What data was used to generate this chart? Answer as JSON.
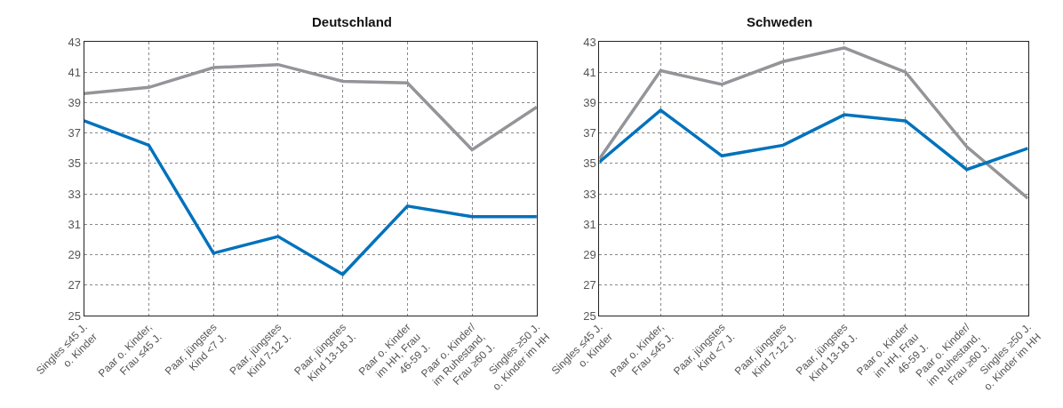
{
  "chart_data": [
    {
      "type": "line",
      "title": "Deutschland",
      "categories": [
        "Singles ≤45 J.\no. Kinder",
        "Paar o. Kinder,\nFrau ≤45 J.",
        "Paar, jüngstes\nKind <7 J.",
        "Paar, jüngstes\nKind 7-12 J.",
        "Paar, jüngstes\nKind 13-18 J.",
        "Paar o. Kinder\nim HH, Frau\n46-59 J.",
        "Paar o. Kinder/\nim Ruhestand,\nFrau ≥60 J.",
        "Singles ≥50 J.\no. Kinder im HH"
      ],
      "series": [
        {
          "color": "#939598",
          "values": [
            39.6,
            40.0,
            41.3,
            41.5,
            40.4,
            40.3,
            35.9,
            38.7
          ]
        },
        {
          "color": "#0072bc",
          "values": [
            37.8,
            36.2,
            29.1,
            30.2,
            27.7,
            32.2,
            31.5,
            31.5
          ]
        }
      ],
      "ylim": [
        25,
        43
      ],
      "yticks": [
        25,
        27,
        29,
        31,
        33,
        35,
        37,
        39,
        41,
        43
      ],
      "grid": true,
      "marker": "none",
      "line_style": "solid"
    },
    {
      "type": "line",
      "title": "Schweden",
      "categories": [
        "Singles ≤45 J.\no. Kinder",
        "Paar o. Kinder,\nFrau ≤45 J.",
        "Paar, jüngstes\nKind <7 J.",
        "Paar, jüngstes\nKind 7-12 J.",
        "Paar, jüngstes\nKind 13-18 J.",
        "Paar o. Kinder\nim HH, Frau\n46-59 J.",
        "Paar o. Kinder/\nim Ruhestand,\nFrau ≥60 J.",
        "Singles ≥50 J.\no. Kinder im HH"
      ],
      "series": [
        {
          "color": "#939598",
          "values": [
            35.3,
            41.1,
            40.2,
            41.7,
            42.6,
            41.0,
            36.1,
            32.7
          ]
        },
        {
          "color": "#0072bc",
          "values": [
            35.1,
            38.5,
            35.5,
            36.2,
            38.2,
            37.8,
            34.6,
            36.0
          ]
        }
      ],
      "ylim": [
        25,
        43
      ],
      "yticks": [
        25,
        27,
        29,
        31,
        33,
        35,
        37,
        39,
        41,
        43
      ],
      "grid": true,
      "marker": "none",
      "line_style": "solid"
    }
  ]
}
